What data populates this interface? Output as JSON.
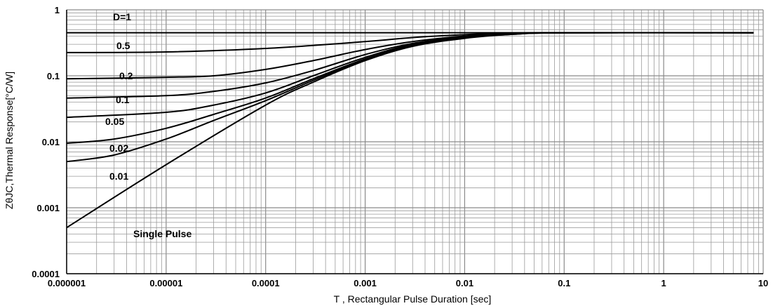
{
  "chart_data": {
    "type": "line",
    "title": "",
    "xlabel": "T , Rectangular Pulse Duration [sec]",
    "ylabel": "ZθJC,Thermal Response[°C/W]",
    "x_scale": "log",
    "y_scale": "log",
    "xlim": [
      1e-06,
      10
    ],
    "ylim": [
      0.0001,
      1
    ],
    "grid": true,
    "x_ticks": [
      "0.000001",
      "0.00001",
      "0.0001",
      "0.001",
      "0.01",
      "0.1",
      "1",
      "10"
    ],
    "y_ticks": [
      "1",
      "0.1",
      "0.01",
      "0.001",
      "0.0001"
    ],
    "annotation": "Single Pulse",
    "series": [
      {
        "name": "D=1",
        "points": [
          [
            1e-06,
            0.45
          ],
          [
            8,
            0.45
          ]
        ]
      },
      {
        "name": "0.5",
        "points": [
          [
            1e-06,
            0.225
          ],
          [
            1e-05,
            0.23
          ],
          [
            0.0001,
            0.26
          ],
          [
            0.001,
            0.33
          ],
          [
            0.003,
            0.38
          ],
          [
            0.01,
            0.42
          ],
          [
            0.03,
            0.445
          ],
          [
            0.1,
            0.45
          ],
          [
            8,
            0.45
          ]
        ]
      },
      {
        "name": "0.2",
        "points": [
          [
            1e-06,
            0.09
          ],
          [
            1e-05,
            0.095
          ],
          [
            3e-05,
            0.1
          ],
          [
            0.0001,
            0.125
          ],
          [
            0.0003,
            0.17
          ],
          [
            0.001,
            0.25
          ],
          [
            0.003,
            0.33
          ],
          [
            0.01,
            0.4
          ],
          [
            0.03,
            0.44
          ],
          [
            0.1,
            0.45
          ],
          [
            8,
            0.45
          ]
        ]
      },
      {
        "name": "0.1",
        "points": [
          [
            1e-06,
            0.046
          ],
          [
            1e-05,
            0.05
          ],
          [
            3e-05,
            0.058
          ],
          [
            0.0001,
            0.078
          ],
          [
            0.0003,
            0.12
          ],
          [
            0.001,
            0.21
          ],
          [
            0.003,
            0.31
          ],
          [
            0.01,
            0.39
          ],
          [
            0.03,
            0.435
          ],
          [
            0.1,
            0.45
          ],
          [
            8,
            0.45
          ]
        ]
      },
      {
        "name": "0.05",
        "points": [
          [
            1e-06,
            0.0235
          ],
          [
            1e-05,
            0.028
          ],
          [
            3e-05,
            0.036
          ],
          [
            0.0001,
            0.055
          ],
          [
            0.0003,
            0.1
          ],
          [
            0.001,
            0.19
          ],
          [
            0.003,
            0.3
          ],
          [
            0.01,
            0.385
          ],
          [
            0.03,
            0.43
          ],
          [
            0.1,
            0.45
          ],
          [
            8,
            0.45
          ]
        ]
      },
      {
        "name": "0.02",
        "points": [
          [
            1e-06,
            0.0095
          ],
          [
            3e-06,
            0.011
          ],
          [
            1e-05,
            0.016
          ],
          [
            3e-05,
            0.026
          ],
          [
            0.0001,
            0.046
          ],
          [
            0.0003,
            0.09
          ],
          [
            0.001,
            0.18
          ],
          [
            0.003,
            0.29
          ],
          [
            0.01,
            0.38
          ],
          [
            0.03,
            0.43
          ],
          [
            0.1,
            0.45
          ],
          [
            8,
            0.45
          ]
        ]
      },
      {
        "name": "0.01",
        "points": [
          [
            1e-06,
            0.005
          ],
          [
            3e-06,
            0.0063
          ],
          [
            1e-05,
            0.011
          ],
          [
            3e-05,
            0.021
          ],
          [
            0.0001,
            0.042
          ],
          [
            0.0003,
            0.085
          ],
          [
            0.001,
            0.175
          ],
          [
            0.003,
            0.285
          ],
          [
            0.01,
            0.375
          ],
          [
            0.03,
            0.425
          ],
          [
            0.1,
            0.45
          ],
          [
            8,
            0.45
          ]
        ]
      },
      {
        "name": "Single Pulse",
        "points": [
          [
            1e-06,
            0.0005
          ],
          [
            1e-05,
            0.0045
          ],
          [
            0.0001,
            0.036
          ],
          [
            0.0003,
            0.08
          ],
          [
            0.001,
            0.17
          ],
          [
            0.003,
            0.28
          ],
          [
            0.01,
            0.37
          ],
          [
            0.03,
            0.425
          ],
          [
            0.1,
            0.45
          ],
          [
            8,
            0.45
          ]
        ]
      }
    ]
  }
}
